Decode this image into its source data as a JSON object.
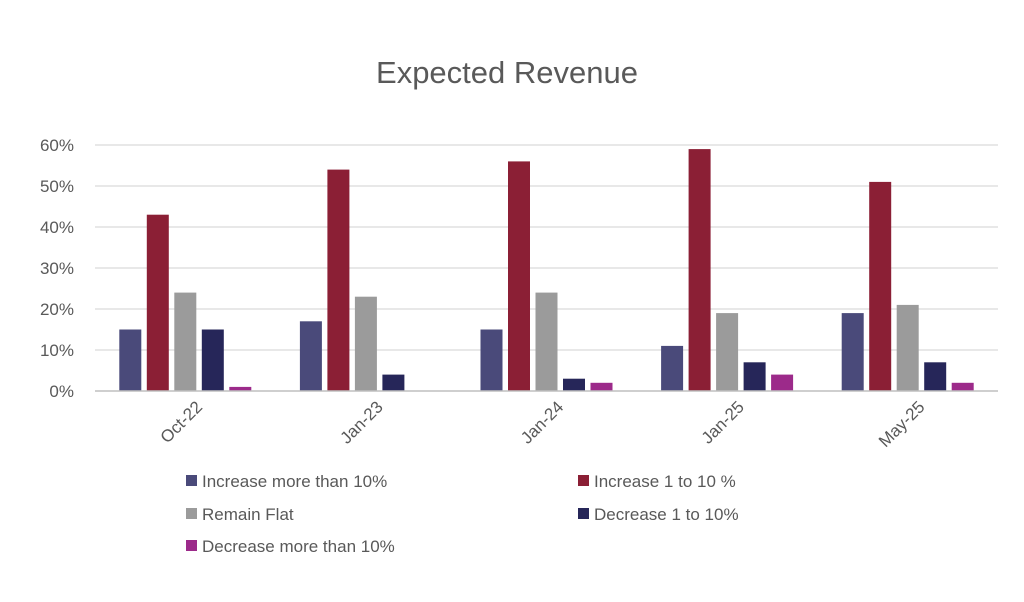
{
  "chart_data": {
    "type": "bar",
    "title": "Expected Revenue",
    "xlabel": "",
    "ylabel": "",
    "ylim": [
      0,
      0.6
    ],
    "y_ticks": [
      0,
      0.1,
      0.2,
      0.3,
      0.4,
      0.5,
      0.6
    ],
    "y_tick_labels": [
      "0%",
      "10%",
      "20%",
      "30%",
      "40%",
      "50%",
      "60%"
    ],
    "grid": "horizontal",
    "legend_position": "bottom",
    "categories": [
      "Oct-22",
      "Jan-23",
      "Jan-24",
      "Jan-25",
      "May-25"
    ],
    "series": [
      {
        "name": "Increase more than 10%",
        "color": "#4a4a7a",
        "values": [
          0.15,
          0.17,
          0.15,
          0.11,
          0.19
        ]
      },
      {
        "name": "Increase 1 to 10 %",
        "color": "#8b1f35",
        "values": [
          0.43,
          0.54,
          0.56,
          0.59,
          0.51
        ]
      },
      {
        "name": "Remain Flat",
        "color": "#9b9b9b",
        "values": [
          0.24,
          0.23,
          0.24,
          0.19,
          0.21
        ]
      },
      {
        "name": "Decrease 1 to 10%",
        "color": "#262659",
        "values": [
          0.15,
          0.04,
          0.03,
          0.07,
          0.07
        ]
      },
      {
        "name": "Decrease more than 10%",
        "color": "#9c2a8a",
        "values": [
          0.01,
          0.0,
          0.02,
          0.04,
          0.02
        ]
      }
    ]
  }
}
